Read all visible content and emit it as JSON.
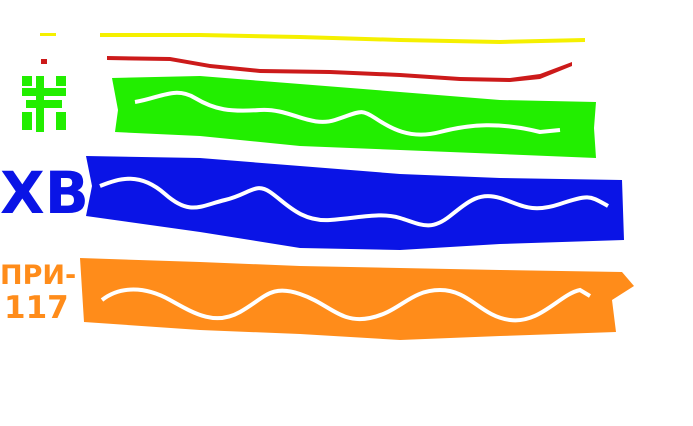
{
  "labels": {
    "blue": "ХВ",
    "orange_line1": "ПРИ-",
    "orange_line2": "117"
  },
  "colors": {
    "yellow": "#f5f000",
    "red": "#cc1a1a",
    "green": "#22ee00",
    "blue": "#0a14e6",
    "orange": "#ff8c1a",
    "trace": "#ffffff"
  }
}
